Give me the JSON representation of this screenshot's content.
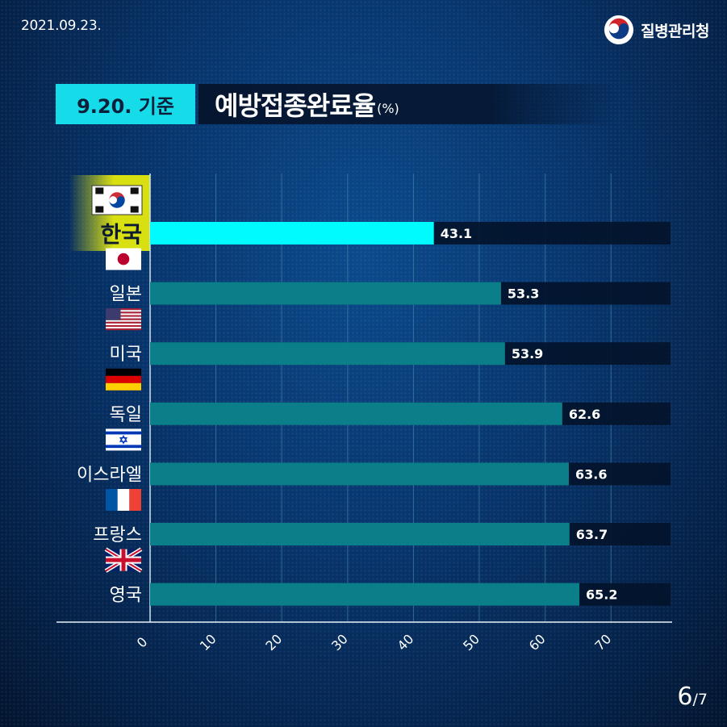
{
  "header": {
    "date": "2021.09.23.",
    "org_name": "질병관리청",
    "logo_icon": "taegeuk-logo-icon"
  },
  "title": {
    "date_label": "9.20. 기준",
    "main": "예방접종완료율",
    "unit": "(%)"
  },
  "chart_data": {
    "type": "bar",
    "orientation": "horizontal",
    "categories": [
      "한국",
      "일본",
      "미국",
      "독일",
      "이스라엘",
      "프랑스",
      "영국"
    ],
    "flags": [
      "flag-korea-icon",
      "flag-japan-icon",
      "flag-usa-icon",
      "flag-germany-icon",
      "flag-israel-icon",
      "flag-france-icon",
      "flag-uk-icon"
    ],
    "values": [
      43.1,
      53.3,
      53.9,
      62.6,
      63.6,
      63.7,
      65.2
    ],
    "value_labels": [
      "43.1",
      "53.3",
      "53.9",
      "62.6",
      "63.6",
      "63.7",
      "65.2"
    ],
    "xlim": [
      0,
      79
    ],
    "x_ticks": [
      0,
      10,
      20,
      30,
      40,
      50,
      60,
      70
    ],
    "x_tick_labels": [
      "0",
      "10",
      "20",
      "30",
      "40",
      "50",
      "60",
      "70"
    ],
    "grid": true,
    "highlight_category": "한국",
    "colors": {
      "highlight": "#00fbff",
      "bar": "#0b7f89",
      "track": "#03132b",
      "grid": "#4d95b3",
      "highlight_box": "#d9e012"
    }
  },
  "page": {
    "current": "6",
    "total": "/7"
  }
}
